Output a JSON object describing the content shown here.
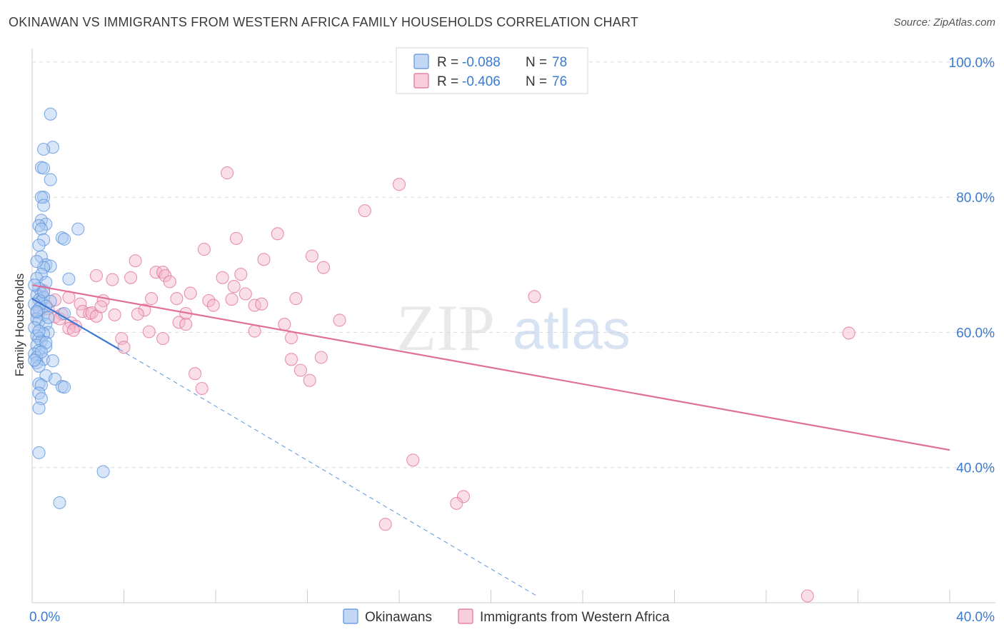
{
  "title": "OKINAWAN VS IMMIGRANTS FROM WESTERN AFRICA FAMILY HOUSEHOLDS CORRELATION CHART",
  "source": "Source: ZipAtlas.com",
  "watermark": {
    "zip": "ZIP",
    "atlas": "atlas"
  },
  "colors": {
    "blue": "#5b93dd",
    "blue_fill": "#a9c8f0",
    "pink": "#e0709a",
    "pink_fill": "#f5b9cd",
    "axis_label": "#3b7bd1"
  },
  "legend": {
    "r_label": "R =",
    "n_label": "N =",
    "rows": [
      {
        "r": "-0.088",
        "n": "78"
      },
      {
        "r": "-0.406",
        "n": "76"
      }
    ]
  },
  "bottom_legend": [
    {
      "label": "Okinawans"
    },
    {
      "label": "Immigrants from Western Africa"
    }
  ],
  "chart_data": {
    "type": "scatter",
    "title": "OKINAWAN VS IMMIGRANTS FROM WESTERN AFRICA FAMILY HOUSEHOLDS CORRELATION CHART",
    "xlabel": "",
    "ylabel": "Family Households",
    "xlim": [
      0,
      40
    ],
    "ylim": [
      20,
      102
    ],
    "x_tick_labels": [
      "0.0%",
      "40.0%"
    ],
    "y_ticks": [
      40,
      60,
      80,
      100
    ],
    "y_tick_labels": [
      "40.0%",
      "60.0%",
      "80.0%",
      "100.0%"
    ],
    "grid": true,
    "legend_position": "top-center",
    "series": [
      {
        "name": "Okinawans",
        "color": "#5b93dd",
        "r": -0.088,
        "n": 78,
        "trend": {
          "x": [
            0.0,
            3.8
          ],
          "y": [
            65.0,
            57.5
          ]
        },
        "trend_extended": {
          "x": [
            3.8,
            22.0
          ],
          "y": [
            57.5,
            21.0
          ]
        },
        "points": [
          [
            0.8,
            92.3
          ],
          [
            0.9,
            87.4
          ],
          [
            0.5,
            87.1
          ],
          [
            0.4,
            84.4
          ],
          [
            0.5,
            84.3
          ],
          [
            0.8,
            82.6
          ],
          [
            0.5,
            80.0
          ],
          [
            0.4,
            80.0
          ],
          [
            0.5,
            78.8
          ],
          [
            0.4,
            76.6
          ],
          [
            0.6,
            76.0
          ],
          [
            0.3,
            75.8
          ],
          [
            0.4,
            75.3
          ],
          [
            2.0,
            75.3
          ],
          [
            1.3,
            74.0
          ],
          [
            1.4,
            73.8
          ],
          [
            0.5,
            73.7
          ],
          [
            0.3,
            72.9
          ],
          [
            0.4,
            71.2
          ],
          [
            0.6,
            70.0
          ],
          [
            0.8,
            69.8
          ],
          [
            0.5,
            69.6
          ],
          [
            0.4,
            68.6
          ],
          [
            0.2,
            68.0
          ],
          [
            0.6,
            67.4
          ],
          [
            1.6,
            67.9
          ],
          [
            0.3,
            66.5
          ],
          [
            0.4,
            65.8
          ],
          [
            0.2,
            65.5
          ],
          [
            0.5,
            65.2
          ],
          [
            0.3,
            64.8
          ],
          [
            0.4,
            64.6
          ],
          [
            0.8,
            64.6
          ],
          [
            0.1,
            64.2
          ],
          [
            0.6,
            63.9
          ],
          [
            0.3,
            63.5
          ],
          [
            0.2,
            62.9
          ],
          [
            1.4,
            62.8
          ],
          [
            0.5,
            62.6
          ],
          [
            0.2,
            62.0
          ],
          [
            0.3,
            61.6
          ],
          [
            0.6,
            61.2
          ],
          [
            0.1,
            60.7
          ],
          [
            0.7,
            60.0
          ],
          [
            0.5,
            59.8
          ],
          [
            0.2,
            59.5
          ],
          [
            0.3,
            59.1
          ],
          [
            0.4,
            58.7
          ],
          [
            0.2,
            58.1
          ],
          [
            0.6,
            57.9
          ],
          [
            0.3,
            57.3
          ],
          [
            0.1,
            56.8
          ],
          [
            0.2,
            56.3
          ],
          [
            0.5,
            56.0
          ],
          [
            0.9,
            55.8
          ],
          [
            0.2,
            55.5
          ],
          [
            0.3,
            55.0
          ],
          [
            0.6,
            53.6
          ],
          [
            1.0,
            53.1
          ],
          [
            0.3,
            52.4
          ],
          [
            0.4,
            52.2
          ],
          [
            1.3,
            52.0
          ],
          [
            1.4,
            51.9
          ],
          [
            0.3,
            51.0
          ],
          [
            0.4,
            50.2
          ],
          [
            0.3,
            48.8
          ],
          [
            0.3,
            42.2
          ],
          [
            3.1,
            39.4
          ],
          [
            1.2,
            34.8
          ],
          [
            0.1,
            67.0
          ],
          [
            0.2,
            70.5
          ],
          [
            0.6,
            58.5
          ],
          [
            0.7,
            62.2
          ],
          [
            0.5,
            66.0
          ],
          [
            0.2,
            63.1
          ],
          [
            0.4,
            57.1
          ],
          [
            0.3,
            60.2
          ],
          [
            0.1,
            55.9
          ]
        ]
      },
      {
        "name": "Immigrants from Western Africa",
        "color": "#e0709a",
        "r": -0.406,
        "n": 76,
        "trend": {
          "x": [
            0.0,
            40.0
          ],
          "y": [
            67.0,
            42.6
          ]
        },
        "points": [
          [
            8.5,
            83.6
          ],
          [
            16.0,
            81.9
          ],
          [
            14.5,
            78.0
          ],
          [
            10.7,
            74.6
          ],
          [
            8.9,
            73.9
          ],
          [
            7.5,
            72.3
          ],
          [
            12.2,
            71.3
          ],
          [
            4.5,
            70.6
          ],
          [
            10.1,
            70.8
          ],
          [
            12.7,
            69.6
          ],
          [
            5.4,
            68.9
          ],
          [
            5.7,
            68.9
          ],
          [
            2.8,
            68.4
          ],
          [
            5.8,
            68.4
          ],
          [
            3.5,
            67.8
          ],
          [
            4.3,
            68.1
          ],
          [
            8.3,
            68.1
          ],
          [
            9.1,
            68.6
          ],
          [
            6.0,
            67.5
          ],
          [
            8.8,
            66.8
          ],
          [
            6.9,
            65.8
          ],
          [
            9.3,
            65.7
          ],
          [
            1.6,
            65.2
          ],
          [
            5.2,
            65.0
          ],
          [
            6.3,
            65.0
          ],
          [
            7.7,
            64.7
          ],
          [
            8.7,
            64.9
          ],
          [
            11.5,
            65.0
          ],
          [
            21.9,
            65.3
          ],
          [
            3.1,
            64.7
          ],
          [
            2.1,
            64.2
          ],
          [
            7.9,
            64.0
          ],
          [
            9.7,
            64.0
          ],
          [
            4.9,
            63.3
          ],
          [
            2.2,
            63.1
          ],
          [
            10.0,
            64.2
          ],
          [
            2.5,
            62.8
          ],
          [
            2.6,
            62.9
          ],
          [
            3.6,
            62.6
          ],
          [
            6.7,
            62.8
          ],
          [
            4.6,
            62.7
          ],
          [
            1.3,
            62.7
          ],
          [
            2.8,
            62.4
          ],
          [
            1.0,
            62.3
          ],
          [
            6.4,
            61.5
          ],
          [
            6.7,
            61.2
          ],
          [
            11.0,
            61.2
          ],
          [
            13.4,
            61.8
          ],
          [
            1.7,
            61.4
          ],
          [
            1.9,
            60.9
          ],
          [
            1.6,
            60.6
          ],
          [
            1.8,
            60.3
          ],
          [
            5.1,
            60.1
          ],
          [
            9.7,
            60.2
          ],
          [
            35.6,
            59.9
          ],
          [
            3.9,
            59.1
          ],
          [
            5.7,
            59.1
          ],
          [
            11.3,
            59.2
          ],
          [
            4.0,
            57.8
          ],
          [
            11.3,
            56.0
          ],
          [
            12.6,
            56.3
          ],
          [
            7.1,
            53.9
          ],
          [
            11.7,
            54.4
          ],
          [
            12.1,
            52.9
          ],
          [
            7.4,
            51.7
          ],
          [
            16.6,
            41.1
          ],
          [
            18.8,
            35.7
          ],
          [
            18.5,
            34.7
          ],
          [
            15.4,
            31.6
          ],
          [
            33.8,
            21.0
          ],
          [
            0.5,
            66.2
          ],
          [
            1.0,
            64.8
          ],
          [
            0.7,
            63.5
          ],
          [
            1.2,
            62.0
          ],
          [
            3.0,
            63.8
          ],
          [
            0.3,
            62.9
          ]
        ]
      }
    ]
  }
}
